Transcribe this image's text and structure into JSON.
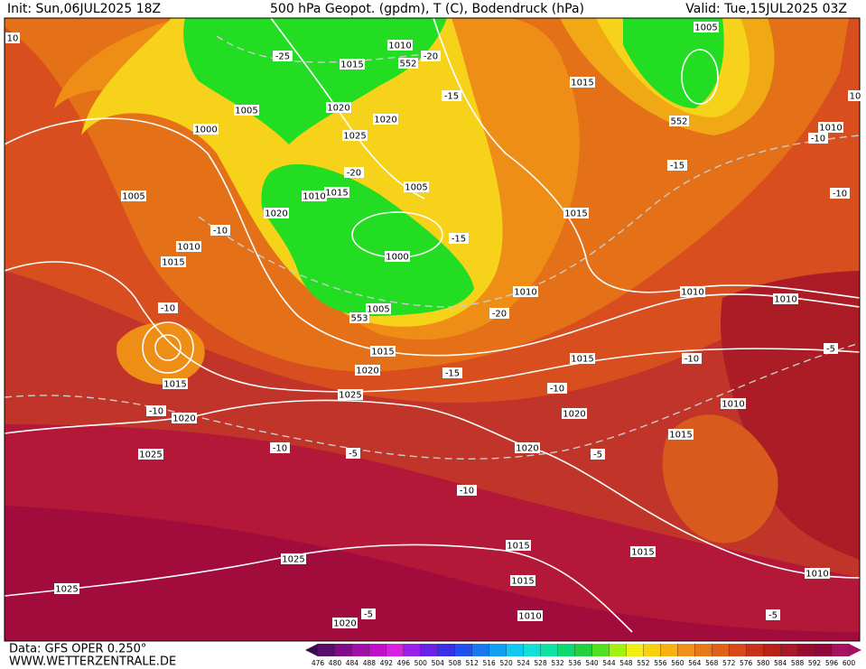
{
  "header": {
    "init": "Init: Sun,06JUL2025 18Z",
    "title": "500 hPa Geopot. (gpdm), T (C), Bodendruck (hPa)",
    "valid": "Valid: Tue,15JUL2025 03Z"
  },
  "footer": {
    "source": "Data: GFS OPER 0.250°",
    "site": "WWW.WETTERZENTRALE.DE"
  },
  "map": {
    "labels": [
      1010,
      1015,
      552,
      -20,
      -25,
      1005,
      1015,
      552,
      -15,
      1005,
      1020,
      1020,
      1000,
      1025,
      -20,
      1015,
      1010,
      1005,
      1005,
      1020,
      -10,
      -15,
      1015,
      1010,
      1015,
      1000,
      1010,
      1010,
      1010,
      -10,
      553,
      1005,
      -20,
      1015,
      1020,
      -15,
      1015,
      -10,
      -5,
      1025,
      1015,
      -10,
      -10,
      1020,
      1020,
      1010,
      1015,
      1025,
      -10,
      -5,
      1020,
      -5,
      -10,
      1015,
      1015,
      1025,
      1025,
      1015,
      1010,
      1010,
      1020,
      -5,
      -5,
      -10,
      -10,
      1010,
      -15,
      10,
      10
    ]
  },
  "colorbar": {
    "ticks": [
      476,
      480,
      484,
      488,
      492,
      496,
      500,
      504,
      508,
      512,
      516,
      520,
      524,
      528,
      532,
      536,
      540,
      544,
      548,
      552,
      556,
      560,
      564,
      568,
      572,
      576,
      580,
      584,
      588,
      592,
      596,
      600
    ],
    "colors": [
      "#3a0a4a",
      "#5a0a6a",
      "#800a8a",
      "#a010a8",
      "#c010c8",
      "#d820e0",
      "#9a20e8",
      "#6a20e8",
      "#3a30e8",
      "#2050f0",
      "#1878f0",
      "#10a0f0",
      "#10c8f0",
      "#10e0d8",
      "#10e0a0",
      "#10d870",
      "#20d040",
      "#50e020",
      "#a0f010",
      "#f0f010",
      "#f8d010",
      "#f8b010",
      "#f09018",
      "#e87818",
      "#e06018",
      "#d84818",
      "#c83018",
      "#b82018",
      "#a81828",
      "#980c30",
      "#900838",
      "#a81060"
    ]
  }
}
